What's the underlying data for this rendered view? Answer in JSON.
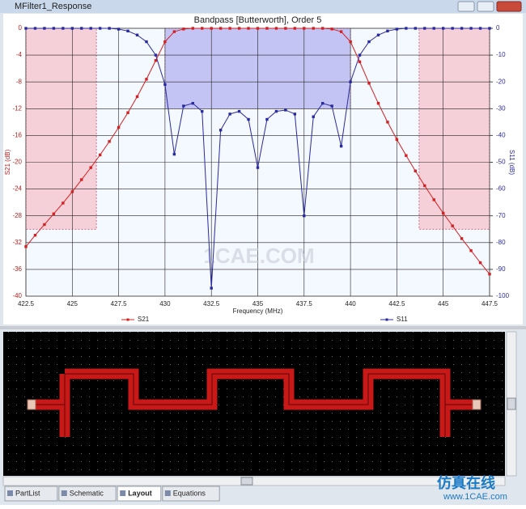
{
  "window": {
    "title": "MFilter1_Response"
  },
  "chart_data": {
    "type": "line",
    "title": "Bandpass [Butterworth], Order 5",
    "x_label": "Frequency (MHz)",
    "y_label": "S21 (dB)",
    "y2_label": "S11 (dB)",
    "x": [
      422.5,
      423,
      423.5,
      424,
      424.5,
      425,
      425.5,
      426,
      426.5,
      427,
      427.5,
      428,
      428.5,
      429,
      429.5,
      430,
      430.5,
      431,
      431.5,
      432,
      432.5,
      433,
      433.5,
      434,
      434.5,
      435,
      435.5,
      436,
      436.5,
      437,
      437.5,
      438,
      438.5,
      439,
      439.5,
      440,
      440.5,
      441,
      441.5,
      442,
      442.5,
      443,
      443.5,
      444,
      444.5,
      445,
      445.5,
      446,
      446.5,
      447,
      447.5
    ],
    "series": [
      {
        "name": "S21",
        "color": "#d42020",
        "values": [
          -32.6,
          -30.9,
          -29.3,
          -27.7,
          -26.1,
          -24.4,
          -22.6,
          -20.8,
          -18.9,
          -16.9,
          -14.8,
          -12.6,
          -10.2,
          -7.6,
          -4.8,
          -2.0,
          -0.5,
          -0.1,
          0,
          0,
          0,
          0,
          0,
          0,
          0,
          0,
          0,
          0,
          0,
          0,
          0,
          0,
          0,
          -0.1,
          -0.5,
          -2.0,
          -5.0,
          -8.2,
          -11.2,
          -14.0,
          -16.6,
          -19.0,
          -21.3,
          -23.5,
          -25.6,
          -27.6,
          -29.5,
          -31.4,
          -33.2,
          -35.0,
          -36.7
        ]
      },
      {
        "name": "S11",
        "color": "#2a2aa0",
        "axis": "y2",
        "values": [
          0,
          0,
          0,
          0,
          0,
          0,
          0,
          0,
          0,
          0,
          -0.3,
          -1,
          -2.5,
          -5,
          -10,
          -21,
          -47,
          -29,
          -28,
          -31,
          -97,
          -38,
          -32,
          -31,
          -34,
          -52,
          -34,
          -31,
          -30.5,
          -32,
          -70,
          -33,
          -28,
          -29,
          -44,
          -20,
          -10,
          -5,
          -2.5,
          -1,
          -0.3,
          0,
          0,
          0,
          0,
          0,
          0,
          0,
          0,
          0,
          0
        ]
      }
    ],
    "regions": [
      {
        "x": [
          430,
          440
        ],
        "y": [
          -12,
          0
        ],
        "color": "#c4c4f4"
      },
      {
        "x": [
          422.5,
          426.3
        ],
        "y": [
          -30,
          0
        ],
        "color": "#f6d0d8"
      },
      {
        "x": [
          443.7,
          447.5
        ],
        "y": [
          -30,
          0
        ],
        "color": "#f6d0d8"
      }
    ],
    "xlim": [
      422.5,
      447.5
    ],
    "xticks": [
      422.5,
      425,
      427.5,
      430,
      432.5,
      435,
      437.5,
      440,
      442.5,
      445,
      447.5
    ],
    "ylim": [
      -40,
      0
    ],
    "yticks": [
      0,
      -4,
      -8,
      -12,
      -16,
      -20,
      -24,
      -28,
      -32,
      -36,
      -40
    ],
    "y2lim": [
      -100,
      0
    ],
    "y2ticks": [
      0,
      -10,
      -20,
      -30,
      -40,
      -50,
      -60,
      -70,
      -80,
      -90,
      -100
    ],
    "grid": true,
    "watermark": "1CAE.COM"
  },
  "tabs": [
    "PartList",
    "Schematic",
    "Layout",
    "Equations"
  ],
  "brand": {
    "name": "仿真在线",
    "url": "www.1CAE.com"
  }
}
